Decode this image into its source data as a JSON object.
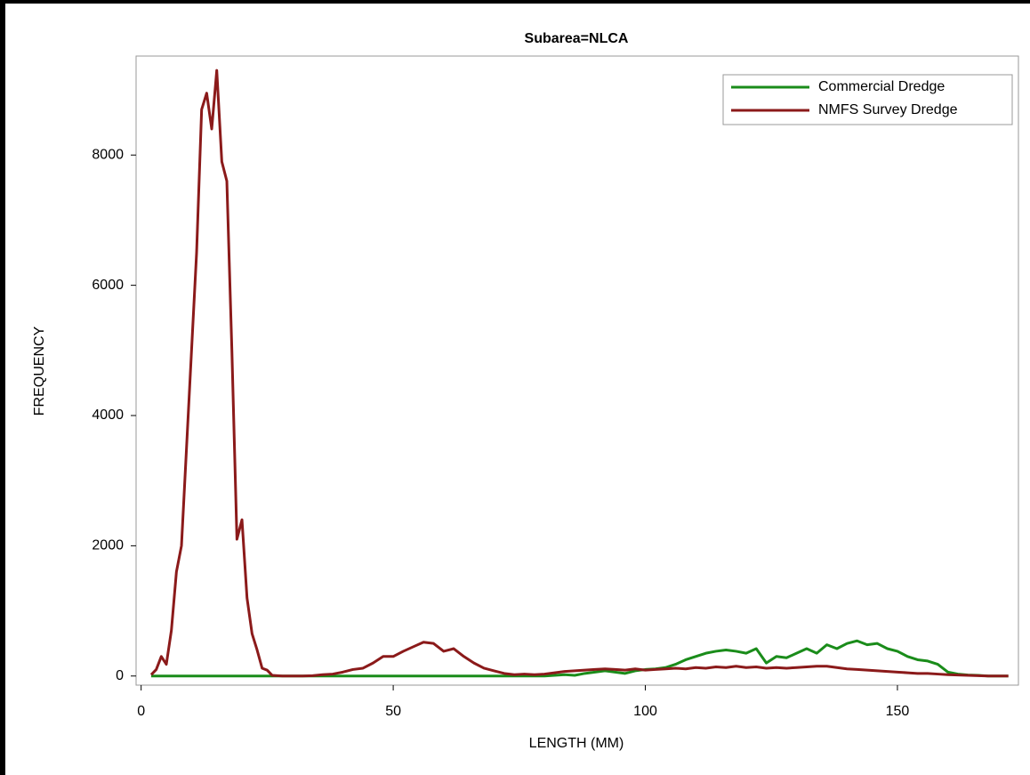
{
  "chart_data": {
    "type": "line",
    "title": "Subarea=NLCA",
    "x_label": "LENGTH (MM)",
    "y_label": "FREQUENCY",
    "x": [
      2,
      3,
      4,
      5,
      6,
      7,
      8,
      9,
      10,
      11,
      12,
      13,
      14,
      15,
      16,
      17,
      18,
      19,
      20,
      21,
      22,
      23,
      24,
      25,
      26,
      28,
      30,
      32,
      34,
      36,
      38,
      40,
      42,
      44,
      46,
      48,
      50,
      52,
      54,
      56,
      58,
      60,
      62,
      64,
      66,
      68,
      70,
      72,
      74,
      76,
      78,
      80,
      82,
      84,
      86,
      88,
      90,
      92,
      94,
      96,
      98,
      100,
      102,
      104,
      106,
      108,
      110,
      112,
      114,
      116,
      118,
      120,
      122,
      124,
      126,
      128,
      130,
      132,
      134,
      136,
      138,
      140,
      142,
      144,
      146,
      148,
      150,
      152,
      154,
      156,
      158,
      160,
      162,
      164,
      166,
      168,
      170,
      172
    ],
    "series": [
      {
        "name": "Commercial Dredge",
        "color": "#1a8c1a",
        "values": [
          0,
          0,
          0,
          0,
          0,
          0,
          0,
          0,
          0,
          0,
          0,
          0,
          0,
          0,
          0,
          0,
          0,
          0,
          0,
          0,
          0,
          0,
          0,
          0,
          0,
          0,
          0,
          0,
          0,
          0,
          0,
          0,
          0,
          0,
          0,
          0,
          0,
          0,
          0,
          0,
          0,
          0,
          0,
          0,
          0,
          0,
          0,
          0,
          0,
          0,
          0,
          0,
          10,
          20,
          10,
          40,
          60,
          80,
          60,
          40,
          80,
          100,
          110,
          130,
          180,
          250,
          300,
          350,
          380,
          400,
          380,
          350,
          420,
          200,
          300,
          280,
          350,
          420,
          350,
          480,
          420,
          500,
          540,
          480,
          500,
          420,
          380,
          300,
          250,
          230,
          180,
          60,
          30,
          15,
          10,
          0,
          0,
          0
        ]
      },
      {
        "name": "NMFS Survey Dredge",
        "color": "#8b1a1a",
        "values": [
          20,
          100,
          300,
          180,
          700,
          1600,
          2000,
          3500,
          5000,
          6500,
          8700,
          8950,
          8400,
          9300,
          7900,
          7600,
          5000,
          2100,
          2400,
          1200,
          650,
          400,
          120,
          90,
          10,
          0,
          0,
          0,
          5,
          20,
          30,
          60,
          100,
          120,
          200,
          300,
          300,
          380,
          450,
          520,
          500,
          380,
          420,
          300,
          200,
          120,
          80,
          40,
          20,
          30,
          20,
          30,
          50,
          70,
          80,
          90,
          100,
          110,
          100,
          90,
          110,
          90,
          100,
          110,
          120,
          110,
          130,
          120,
          140,
          130,
          150,
          130,
          140,
          120,
          130,
          120,
          130,
          140,
          150,
          150,
          130,
          110,
          100,
          90,
          80,
          70,
          60,
          50,
          40,
          40,
          30,
          20,
          15,
          10,
          5,
          0,
          0,
          0
        ]
      }
    ],
    "xlim": [
      -1,
      174
    ],
    "ylim": [
      -140,
      9520
    ],
    "xticks": [
      0,
      50,
      100,
      150
    ],
    "yticks": [
      0,
      2000,
      4000,
      6000,
      8000
    ],
    "grid": false,
    "legend_position": "top-right"
  }
}
